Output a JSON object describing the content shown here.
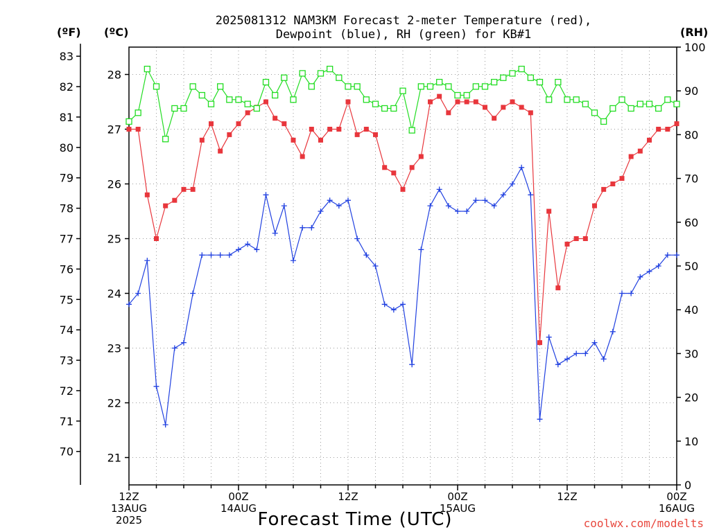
{
  "chart_data": {
    "type": "line",
    "title_line1": "2025081312 NAM3KM Forecast 2-meter Temperature (red),",
    "title_line2": "Dewpoint (blue), RH (green) for KB#1",
    "xlabel": "Forecast Time (UTC)",
    "credit": "coolwx.com/modelts",
    "unit_f": "(ºF)",
    "unit_c": "(ºC)",
    "unit_rh": "(RH)",
    "x_ticks": [
      {
        "hour": 0,
        "line1": "12Z",
        "line2": "13AUG",
        "line3": "2025"
      },
      {
        "hour": 12,
        "line1": "00Z",
        "line2": "14AUG",
        "line3": ""
      },
      {
        "hour": 24,
        "line1": "12Z",
        "line2": "",
        "line3": ""
      },
      {
        "hour": 36,
        "line1": "00Z",
        "line2": "15AUG",
        "line3": ""
      },
      {
        "hour": 48,
        "line1": "12Z",
        "line2": "",
        "line3": ""
      },
      {
        "hour": 60,
        "line1": "00Z",
        "line2": "16AUG",
        "line3": ""
      }
    ],
    "xlim": [
      0,
      60
    ],
    "ylim_c": [
      20.5,
      28.5
    ],
    "ylim_rh": [
      0,
      100
    ],
    "yticks_f": [
      "70",
      "71",
      "72",
      "73",
      "74",
      "75",
      "76",
      "77",
      "78",
      "79",
      "80",
      "81",
      "82",
      "83"
    ],
    "yticks_c": [
      "21",
      "22",
      "23",
      "24",
      "25",
      "26",
      "27",
      "28"
    ],
    "yticks_rh": [
      "0",
      "10",
      "20",
      "30",
      "40",
      "50",
      "60",
      "70",
      "80",
      "90",
      "100"
    ],
    "colors": {
      "temperature": "#e8363c",
      "dewpoint": "#2040e0",
      "rh": "#22dd22"
    },
    "series": [
      {
        "key": "temperature",
        "unit": "C",
        "values": [
          27.0,
          27.0,
          25.8,
          25.0,
          25.6,
          25.7,
          25.9,
          25.9,
          26.8,
          27.1,
          26.6,
          26.9,
          27.1,
          27.3,
          27.4,
          27.5,
          27.2,
          27.1,
          26.8,
          26.5,
          27.0,
          26.8,
          27.0,
          27.0,
          27.5,
          26.9,
          27.0,
          26.9,
          26.3,
          26.2,
          25.9,
          26.3,
          26.5,
          27.5,
          27.6,
          27.3,
          27.5,
          27.5,
          27.5,
          27.4,
          27.2,
          27.4,
          27.5,
          27.4,
          27.3,
          23.1,
          25.5,
          24.1,
          24.9,
          25.0,
          25.0,
          25.6,
          25.9,
          26.0,
          26.1,
          26.5,
          26.6,
          26.8,
          27.0,
          27.0,
          27.1
        ]
      },
      {
        "key": "dewpoint",
        "unit": "C",
        "values": [
          23.8,
          24.0,
          24.6,
          22.3,
          21.6,
          23.0,
          23.1,
          24.0,
          24.7,
          24.7,
          24.7,
          24.7,
          24.8,
          24.9,
          24.8,
          25.8,
          25.1,
          25.6,
          24.6,
          25.2,
          25.2,
          25.5,
          25.7,
          25.6,
          25.7,
          25.0,
          24.7,
          24.5,
          23.8,
          23.7,
          23.8,
          22.7,
          24.8,
          25.6,
          25.9,
          25.6,
          25.5,
          25.5,
          25.7,
          25.7,
          25.6,
          25.8,
          26.0,
          26.3,
          25.8,
          21.7,
          23.2,
          22.7,
          22.8,
          22.9,
          22.9,
          23.1,
          22.8,
          23.3,
          24.0,
          24.0,
          24.3,
          24.4,
          24.5,
          24.7,
          24.7
        ]
      },
      {
        "key": "rh",
        "unit": "%",
        "values": [
          83,
          85,
          95,
          91,
          79,
          86,
          86,
          91,
          89,
          87,
          91,
          88,
          88,
          87,
          86,
          92,
          89,
          93,
          88,
          94,
          91,
          94,
          95,
          93,
          91,
          91,
          88,
          87,
          86,
          86,
          90,
          81,
          91,
          91,
          92,
          91,
          89,
          89,
          91,
          91,
          92,
          93,
          94,
          95,
          93,
          92,
          88,
          92,
          88,
          88,
          87,
          85,
          83,
          86,
          88,
          86,
          87,
          87,
          86,
          88,
          87
        ]
      }
    ]
  }
}
